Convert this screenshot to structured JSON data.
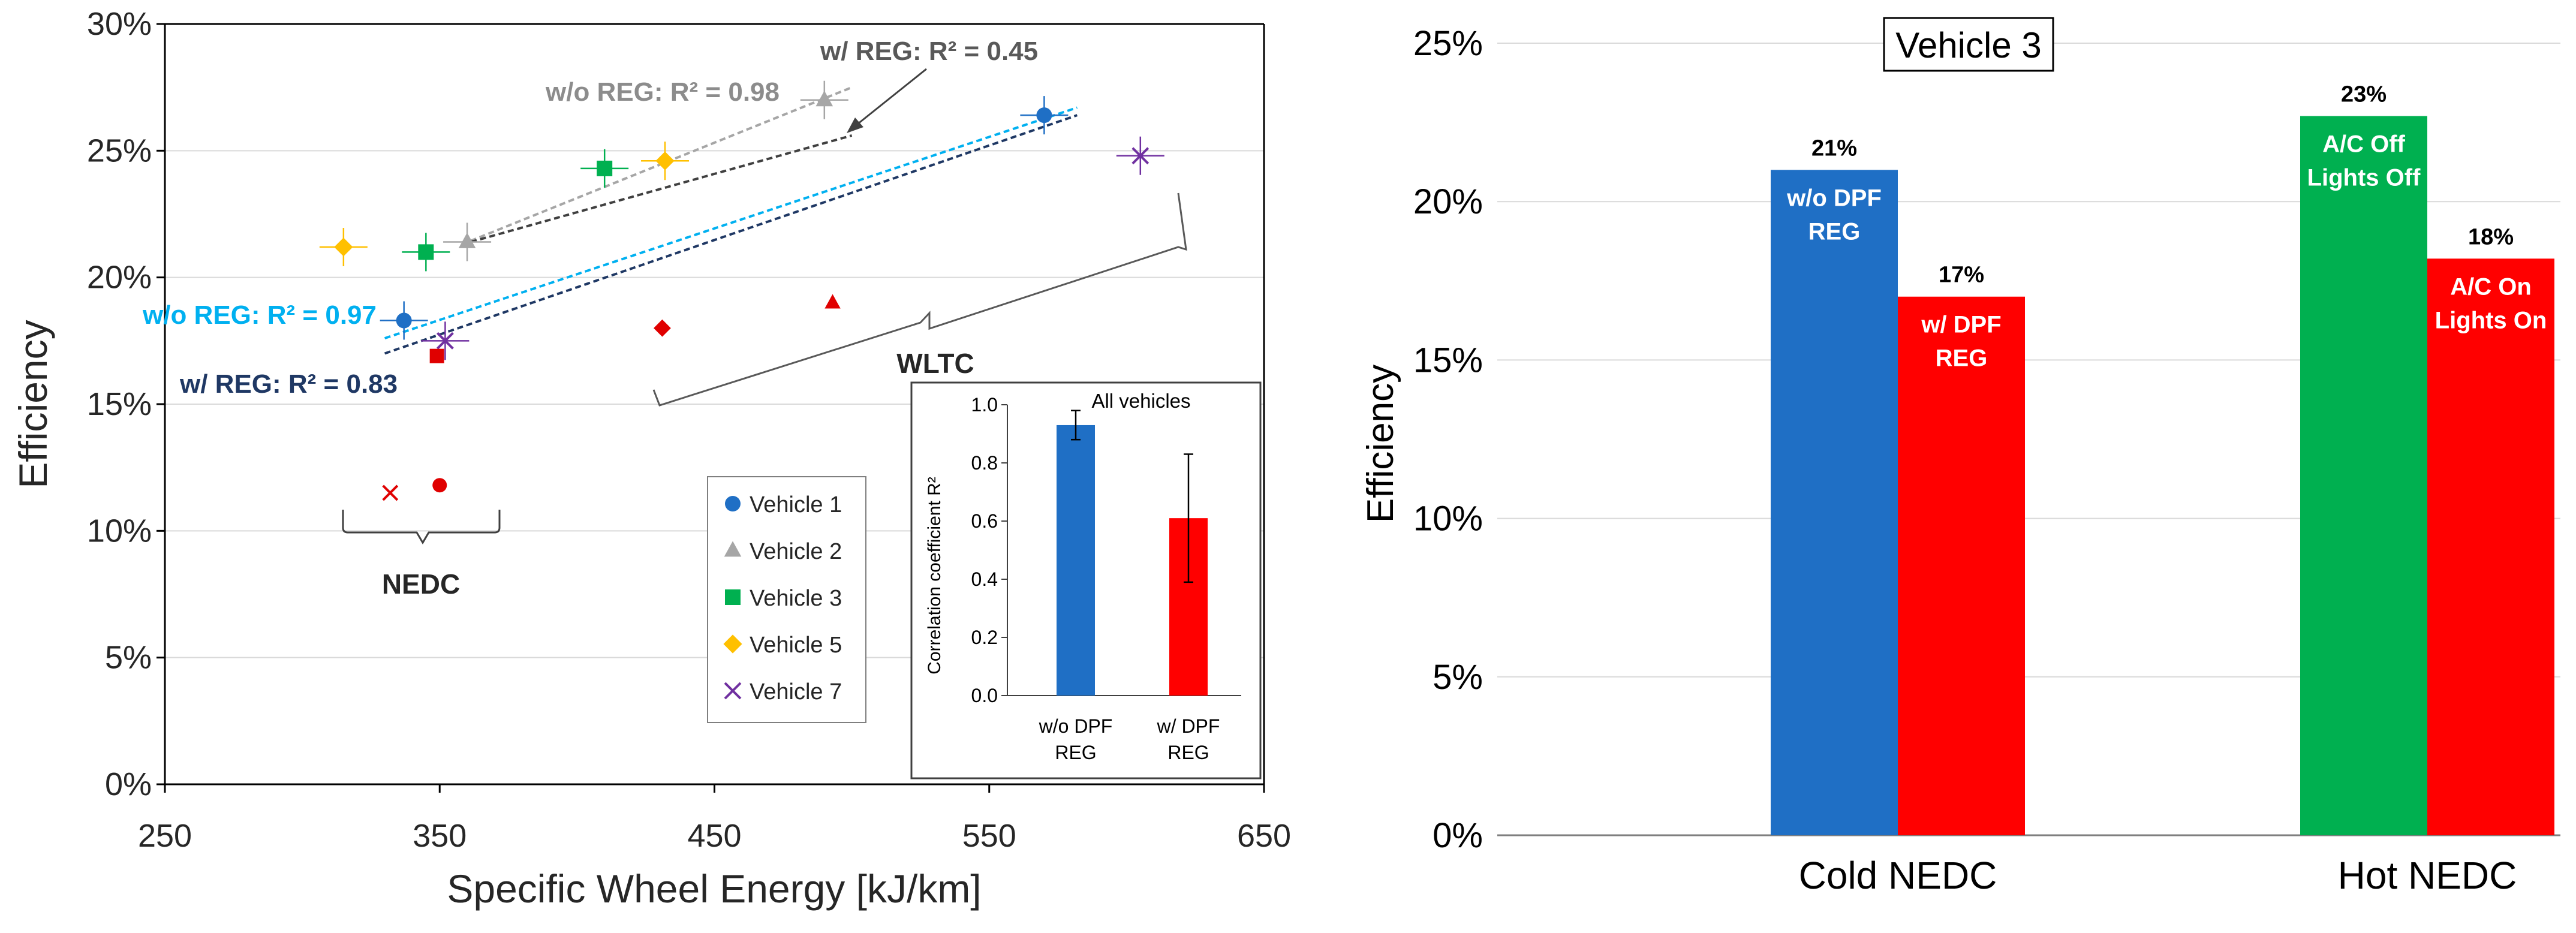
{
  "chart_data": [
    {
      "type": "scatter",
      "xlabel": "Specific Wheel Energy [kJ/km]",
      "ylabel": "Efficiency",
      "xlim": [
        250,
        650
      ],
      "ylim": [
        0,
        30
      ],
      "x_ticks": [
        "250",
        "350",
        "450",
        "550",
        "650"
      ],
      "y_ticks": [
        "0%",
        "5%",
        "10%",
        "15%",
        "20%",
        "25%",
        "30%"
      ],
      "series": [
        {
          "name": "Vehicle 1",
          "marker": "circle",
          "color": "#1F6FC5",
          "points": [
            {
              "x": 337,
              "y": 18.3
            },
            {
              "x": 570,
              "y": 26.4
            }
          ]
        },
        {
          "name": "Vehicle 2",
          "marker": "triangle",
          "color": "#A6A6A6",
          "points": [
            {
              "x": 360,
              "y": 21.4
            },
            {
              "x": 490,
              "y": 27.0
            }
          ]
        },
        {
          "name": "Vehicle 3",
          "marker": "square",
          "color": "#00B050",
          "points": [
            {
              "x": 345,
              "y": 21.0
            },
            {
              "x": 410,
              "y": 24.3
            }
          ]
        },
        {
          "name": "Vehicle 5",
          "marker": "diamond",
          "color": "#FFC000",
          "points": [
            {
              "x": 315,
              "y": 21.2
            },
            {
              "x": 432,
              "y": 24.6
            }
          ]
        },
        {
          "name": "Vehicle 7",
          "marker": "x",
          "color": "#7030A0",
          "points": [
            {
              "x": 352,
              "y": 17.5
            },
            {
              "x": 605,
              "y": 24.8
            }
          ]
        }
      ],
      "highlighted_points": [
        {
          "marker": "x",
          "x": 332,
          "y": 11.5
        },
        {
          "marker": "circle",
          "x": 350,
          "y": 11.8
        },
        {
          "marker": "square",
          "x": 349,
          "y": 16.9
        },
        {
          "marker": "diamond",
          "x": 431,
          "y": 18.0
        },
        {
          "marker": "triangle",
          "x": 493,
          "y": 19.0
        }
      ],
      "highlight_color": "#E00000",
      "trendlines": [
        {
          "label": "w/o REG: R² = 0.98",
          "color": "#A6A6A6",
          "from": [
            358,
            21.3
          ],
          "to": [
            500,
            27.5
          ]
        },
        {
          "label": "w/ REG: R² = 0.45",
          "color": "#404040",
          "from": [
            358,
            21.3
          ],
          "to": [
            500,
            25.6
          ]
        },
        {
          "label": "w/o REG: R² = 0.97",
          "color": "#00B0F0",
          "from": [
            330,
            17.6
          ],
          "to": [
            582,
            26.7
          ]
        },
        {
          "label": "w/ REG: R² = 0.83",
          "color": "#1F3864",
          "from": [
            330,
            17.0
          ],
          "to": [
            582,
            26.4
          ]
        }
      ],
      "annotations": [
        "NEDC",
        "WLTC"
      ],
      "legend_position": "lower-center",
      "inset": {
        "type": "bar",
        "title": "All vehicles",
        "ylabel": "Correlation coefficient R²",
        "ylim": [
          0,
          1.0
        ],
        "y_ticks": [
          "0.0",
          "0.2",
          "0.4",
          "0.6",
          "0.8",
          "1.0"
        ],
        "categories": [
          [
            "w/o DPF",
            "REG"
          ],
          [
            "w/ DPF",
            "REG"
          ]
        ],
        "values": [
          0.93,
          0.61
        ],
        "errors": [
          [
            0.88,
            0.98
          ],
          [
            0.39,
            0.83
          ]
        ],
        "colors": [
          "#1F6FC5",
          "#FF0000"
        ]
      }
    },
    {
      "type": "bar",
      "title": "Vehicle 3",
      "ylabel": "Efficiency",
      "ylim": [
        0,
        25
      ],
      "y_ticks": [
        "0%",
        "5%",
        "10%",
        "15%",
        "20%",
        "25%"
      ],
      "groups": [
        {
          "category": "Cold NEDC",
          "bars": [
            {
              "value": 21,
              "value_label": "21%",
              "label_lines": [
                "w/o DPF",
                "REG"
              ],
              "color": "#1F6FC5"
            },
            {
              "value": 17,
              "value_label": "17%",
              "label_lines": [
                "w/ DPF",
                "REG"
              ],
              "color": "#FF0000"
            }
          ]
        },
        {
          "category": "Hot NEDC",
          "bars": [
            {
              "value": 22.7,
              "value_label": "23%",
              "label_lines": [
                "A/C Off",
                "Lights Off"
              ],
              "color": "#00B050"
            },
            {
              "value": 18.2,
              "value_label": "18%",
              "label_lines": [
                "A/C On",
                "Lights On"
              ],
              "color": "#FF0000"
            }
          ]
        }
      ]
    }
  ]
}
